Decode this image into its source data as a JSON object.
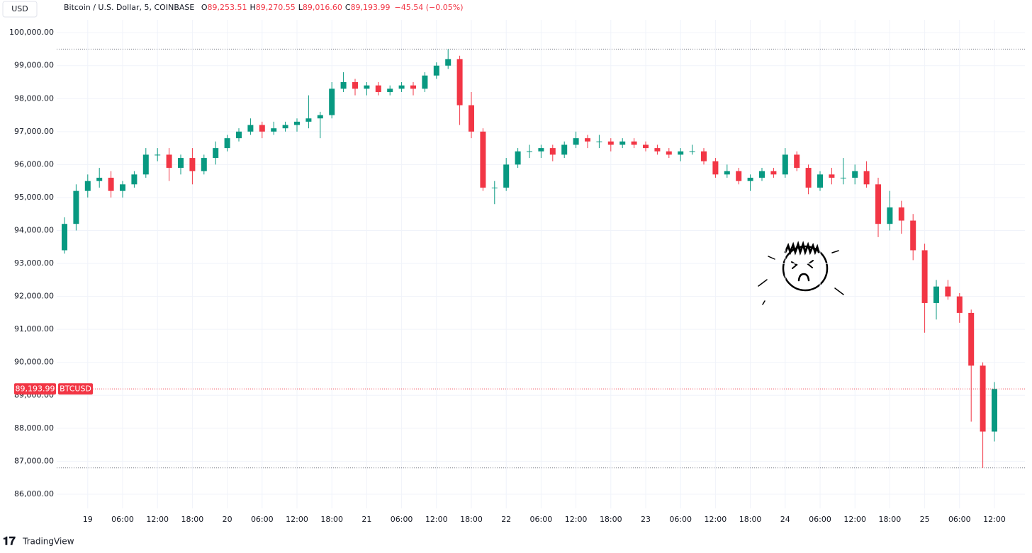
{
  "chart_data": {
    "type": "candlestick",
    "currency": "USD",
    "symbol": "Bitcoin / U.S. Dollar, 5, COINBASE",
    "ohlc_legend": [
      {
        "label": "O",
        "value": "89,253.51"
      },
      {
        "label": "H",
        "value": "89,270.55"
      },
      {
        "label": "L",
        "value": "89,016.60"
      },
      {
        "label": "C",
        "value": "89,193.99"
      }
    ],
    "change": "−45.54 (−0.05%)",
    "brand": "TradingView",
    "up_color": "#089981",
    "down_color": "#f23645",
    "grid": true,
    "ylim": [
      85570,
      100390
    ],
    "yticks": [
      {
        "value": 86000,
        "label": "86,000.00"
      },
      {
        "value": 87000,
        "label": "87,000.00"
      },
      {
        "value": 88000,
        "label": "88,000.00"
      },
      {
        "value": 89000,
        "label": "89,000.00"
      },
      {
        "value": 90000,
        "label": "90,000.00"
      },
      {
        "value": 91000,
        "label": "91,000.00"
      },
      {
        "value": 92000,
        "label": "92,000.00"
      },
      {
        "value": 93000,
        "label": "93,000.00"
      },
      {
        "value": 94000,
        "label": "94,000.00"
      },
      {
        "value": 95000,
        "label": "95,000.00"
      },
      {
        "value": 96000,
        "label": "96,000.00"
      },
      {
        "value": 97000,
        "label": "97,000.00"
      },
      {
        "value": 98000,
        "label": "98,000.00"
      },
      {
        "value": 99000,
        "label": "99,000.00"
      },
      {
        "value": 100000,
        "label": "100,000.00"
      }
    ],
    "price_line": {
      "value": 89193.99,
      "label": "89,193.99",
      "name": "BTCUSD"
    },
    "range_lines": [
      99500,
      86800
    ],
    "categories": [
      null,
      null,
      "19",
      null,
      null,
      "06:00",
      null,
      null,
      "12:00",
      null,
      null,
      "18:00",
      null,
      null,
      "20",
      null,
      null,
      "06:00",
      null,
      null,
      "12:00",
      null,
      null,
      "18:00",
      null,
      null,
      "21",
      null,
      null,
      "06:00",
      null,
      null,
      "12:00",
      null,
      null,
      "18:00",
      null,
      null,
      "22",
      null,
      null,
      "06:00",
      null,
      null,
      "12:00",
      null,
      null,
      "18:00",
      null,
      null,
      "23",
      null,
      null,
      "06:00",
      null,
      null,
      "12:00",
      null,
      null,
      "18:00",
      null,
      null,
      "24",
      null,
      null,
      "06:00",
      null,
      null,
      "12:00",
      null,
      null,
      "18:00",
      null,
      null,
      "25",
      null,
      null,
      "06:00",
      null,
      null,
      "12:00"
    ],
    "open": [
      93400,
      94200,
      95200,
      95500,
      95600,
      95200,
      95400,
      95700,
      96300,
      96300,
      95900,
      96200,
      95800,
      96200,
      96500,
      96800,
      97000,
      97200,
      97000,
      97100,
      97200,
      97300,
      97400,
      97500,
      98300,
      98500,
      98300,
      98400,
      98200,
      98300,
      98400,
      98300,
      98700,
      99000,
      99200,
      97800,
      97000,
      95300,
      95300,
      96000,
      96400,
      96400,
      96500,
      96300,
      96600,
      96800,
      96700,
      96700,
      96600,
      96700,
      96600,
      96500,
      96400,
      96300,
      96400,
      96400,
      96100,
      95700,
      95800,
      95500,
      95600,
      95800,
      95700,
      96300,
      95900,
      95300,
      95700,
      95600,
      95600,
      95800,
      95400,
      94200,
      94700,
      94300,
      93400,
      91800,
      92300,
      92000,
      91500,
      89900,
      87900
    ],
    "high": [
      94400,
      95400,
      95700,
      95900,
      95800,
      95500,
      95800,
      96500,
      96500,
      96500,
      96300,
      96500,
      96300,
      96700,
      96900,
      97100,
      97400,
      97300,
      97300,
      97300,
      97400,
      98100,
      97600,
      98500,
      98800,
      98600,
      98500,
      98500,
      98400,
      98500,
      98500,
      98800,
      99100,
      99500,
      99300,
      98200,
      97100,
      95500,
      96200,
      96500,
      96600,
      96600,
      96600,
      96700,
      97000,
      96900,
      96900,
      96800,
      96800,
      96800,
      96700,
      96600,
      96500,
      96500,
      96600,
      96500,
      96200,
      96000,
      95900,
      95700,
      95900,
      95900,
      96500,
      96400,
      96000,
      95800,
      95900,
      96200,
      96000,
      96100,
      95600,
      95200,
      94900,
      94500,
      93600,
      92500,
      92500,
      92100,
      91600,
      90000,
      89400
    ],
    "low": [
      93300,
      94000,
      95000,
      95300,
      95000,
      95000,
      95300,
      95600,
      96100,
      95500,
      95700,
      95400,
      95700,
      96000,
      96400,
      96700,
      96900,
      96800,
      96900,
      97000,
      97000,
      97100,
      96800,
      97400,
      98200,
      98100,
      98100,
      98100,
      98100,
      98200,
      98100,
      98200,
      98600,
      98900,
      97200,
      96800,
      95200,
      94800,
      95200,
      95900,
      96200,
      96200,
      96100,
      96200,
      96500,
      96500,
      96500,
      96400,
      96500,
      96500,
      96400,
      96300,
      96200,
      96100,
      96300,
      96000,
      95600,
      95600,
      95400,
      95200,
      95500,
      95600,
      95600,
      95800,
      95100,
      95200,
      95400,
      95400,
      95400,
      95300,
      93800,
      94000,
      93900,
      93100,
      90900,
      91300,
      91900,
      91200,
      88200,
      86800,
      87600
    ],
    "close": [
      94200,
      95200,
      95500,
      95600,
      95200,
      95400,
      95700,
      96300,
      96300,
      95900,
      96200,
      95800,
      96200,
      96500,
      96800,
      97000,
      97200,
      97000,
      97100,
      97200,
      97300,
      97400,
      97500,
      98300,
      98500,
      98300,
      98400,
      98200,
      98300,
      98400,
      98300,
      98700,
      99000,
      99200,
      97800,
      97000,
      95300,
      95300,
      96000,
      96400,
      96400,
      96500,
      96300,
      96600,
      96800,
      96700,
      96700,
      96600,
      96700,
      96600,
      96500,
      96400,
      96300,
      96400,
      96400,
      96100,
      95700,
      95800,
      95500,
      95600,
      95800,
      95700,
      96300,
      95900,
      95300,
      95700,
      95600,
      95600,
      95800,
      95400,
      94200,
      94700,
      94300,
      93400,
      91800,
      92300,
      92000,
      91500,
      89900,
      87900,
      89193.99
    ]
  }
}
